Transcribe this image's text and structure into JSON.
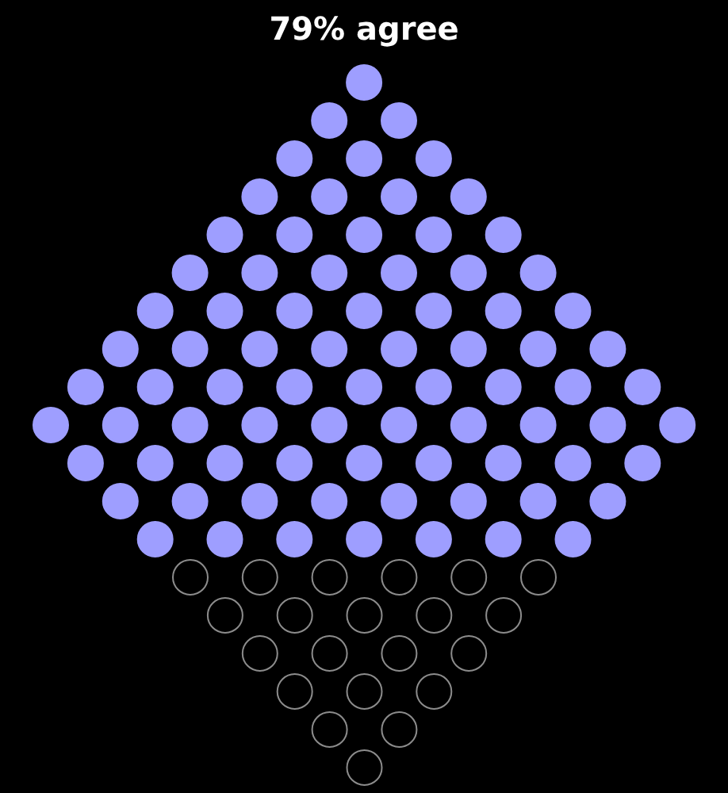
{
  "chart_data": {
    "type": "other",
    "values": [
      79
    ],
    "value_labels": [
      "79% agree"
    ],
    "colors": [
      "#9e9eff"
    ]
  }
}
